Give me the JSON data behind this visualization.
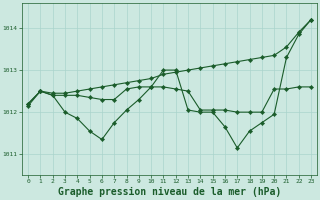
{
  "background_color": "#cce8e0",
  "grid_color": "#aad4cc",
  "line_color": "#1a5c2a",
  "title": "Graphe pression niveau de la mer (hPa)",
  "title_fontsize": 7.0,
  "xlim": [
    -0.5,
    23.5
  ],
  "ylim": [
    1010.5,
    1014.6
  ],
  "yticks": [
    1011,
    1012,
    1013,
    1014
  ],
  "xticks": [
    0,
    1,
    2,
    3,
    4,
    5,
    6,
    7,
    8,
    9,
    10,
    11,
    12,
    13,
    14,
    15,
    16,
    17,
    18,
    19,
    20,
    21,
    22,
    23
  ],
  "series": [
    {
      "x": [
        0,
        1,
        2,
        3,
        4,
        5,
        6,
        7,
        8,
        9,
        10,
        11,
        12,
        13,
        14,
        15,
        16,
        17,
        18,
        19,
        20,
        21,
        22,
        23
      ],
      "y": [
        1012.2,
        1012.5,
        1012.45,
        1012.45,
        1012.5,
        1012.55,
        1012.6,
        1012.65,
        1012.7,
        1012.75,
        1012.8,
        1012.9,
        1012.95,
        1013.0,
        1013.05,
        1013.1,
        1013.15,
        1013.2,
        1013.25,
        1013.3,
        1013.35,
        1013.55,
        1013.9,
        1014.2
      ]
    },
    {
      "x": [
        0,
        1,
        2,
        3,
        4,
        5,
        6,
        7,
        8,
        9,
        10,
        11,
        12,
        13,
        14,
        15,
        16,
        17,
        18,
        19,
        20,
        21,
        22,
        23
      ],
      "y": [
        1012.15,
        1012.5,
        1012.4,
        1012.0,
        1011.85,
        1011.55,
        1011.35,
        1011.75,
        1012.05,
        1012.3,
        1012.6,
        1013.0,
        1013.0,
        1012.05,
        1012.0,
        1012.0,
        1011.65,
        1011.15,
        1011.55,
        1011.75,
        1011.95,
        1013.3,
        1013.85,
        1014.2
      ]
    },
    {
      "x": [
        0,
        1,
        2,
        3,
        4,
        5,
        6,
        7,
        8,
        9,
        10,
        11,
        12,
        13,
        14,
        15,
        16,
        17,
        18,
        19,
        20,
        21,
        22,
        23
      ],
      "y": [
        1012.2,
        1012.5,
        1012.4,
        1012.4,
        1012.4,
        1012.35,
        1012.3,
        1012.3,
        1012.55,
        1012.6,
        1012.6,
        1012.6,
        1012.55,
        1012.5,
        1012.05,
        1012.05,
        1012.05,
        1012.0,
        1012.0,
        1012.0,
        1012.55,
        1012.55,
        1012.6,
        1012.6
      ]
    }
  ]
}
